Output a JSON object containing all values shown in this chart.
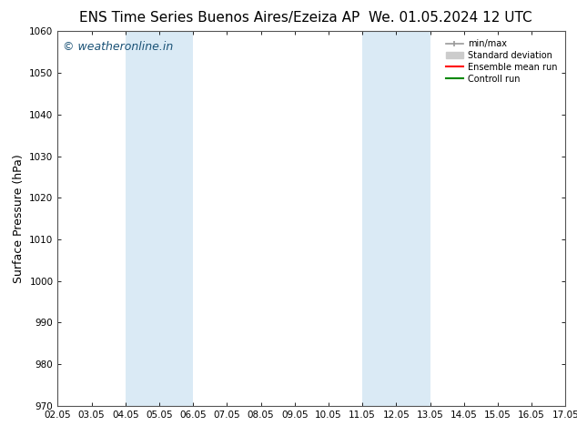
{
  "title_left": "ENS Time Series Buenos Aires/Ezeiza AP",
  "title_right": "We. 01.05.2024 12 UTC",
  "ylabel": "Surface Pressure (hPa)",
  "ylim": [
    970,
    1060
  ],
  "yticks": [
    970,
    980,
    990,
    1000,
    1010,
    1020,
    1030,
    1040,
    1050,
    1060
  ],
  "xtick_labels": [
    "02.05",
    "03.05",
    "04.05",
    "05.05",
    "06.05",
    "07.05",
    "08.05",
    "09.05",
    "10.05",
    "11.05",
    "12.05",
    "13.05",
    "14.05",
    "15.05",
    "16.05",
    "17.05"
  ],
  "xtick_positions": [
    0,
    1,
    2,
    3,
    4,
    5,
    6,
    7,
    8,
    9,
    10,
    11,
    12,
    13,
    14,
    15
  ],
  "shaded_bands": [
    {
      "x_start": 2,
      "x_end": 4,
      "color": "#daeaf5"
    },
    {
      "x_start": 9,
      "x_end": 11,
      "color": "#daeaf5"
    }
  ],
  "watermark_text": "© weatheronline.in",
  "watermark_color": "#1a5276",
  "background_color": "#ffffff",
  "plot_bg_color": "#ffffff",
  "legend_items": [
    {
      "label": "min/max",
      "color": "#999999",
      "lw": 1.2
    },
    {
      "label": "Standard deviation",
      "color": "#cccccc",
      "lw": 5
    },
    {
      "label": "Ensemble mean run",
      "color": "#ff0000",
      "lw": 1.5
    },
    {
      "label": "Controll run",
      "color": "#008800",
      "lw": 1.5
    }
  ],
  "title_fontsize": 11,
  "tick_fontsize": 7.5,
  "ylabel_fontsize": 9,
  "watermark_fontsize": 9
}
